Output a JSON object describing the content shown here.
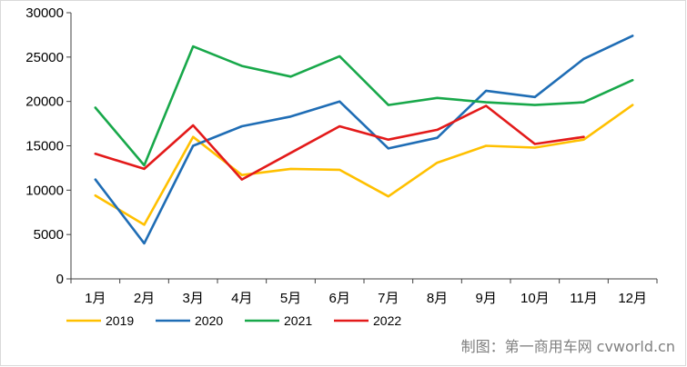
{
  "chart_data": {
    "type": "line",
    "categories": [
      "1月",
      "2月",
      "3月",
      "4月",
      "5月",
      "6月",
      "7月",
      "8月",
      "9月",
      "10月",
      "11月",
      "12月"
    ],
    "ylim": [
      0,
      30000
    ],
    "yticks": [
      0,
      5000,
      10000,
      15000,
      20000,
      25000,
      30000
    ],
    "grid": false,
    "legend_position": "bottom-left",
    "series": [
      {
        "name": "2019",
        "color": "#FFC000",
        "values": [
          9400,
          6100,
          16000,
          11700,
          12400,
          12300,
          9300,
          13100,
          15000,
          14800,
          15700,
          19600
        ]
      },
      {
        "name": "2020",
        "color": "#1F6DB5",
        "values": [
          11200,
          4000,
          15000,
          17200,
          18300,
          20000,
          14700,
          15900,
          21200,
          20500,
          24800,
          27400
        ]
      },
      {
        "name": "2021",
        "color": "#18A84A",
        "values": [
          19300,
          12800,
          26200,
          24000,
          22800,
          25100,
          19600,
          20400,
          19900,
          19600,
          19900,
          22400
        ]
      },
      {
        "name": "2022",
        "color": "#E31A1A",
        "values": [
          14100,
          12400,
          17300,
          11200,
          14200,
          17200,
          15700,
          16800,
          19500,
          15200,
          16000,
          null
        ]
      }
    ]
  },
  "watermark": "制图：第一商用车网 cvworld.cn",
  "frame_color": "#d9d9d9"
}
